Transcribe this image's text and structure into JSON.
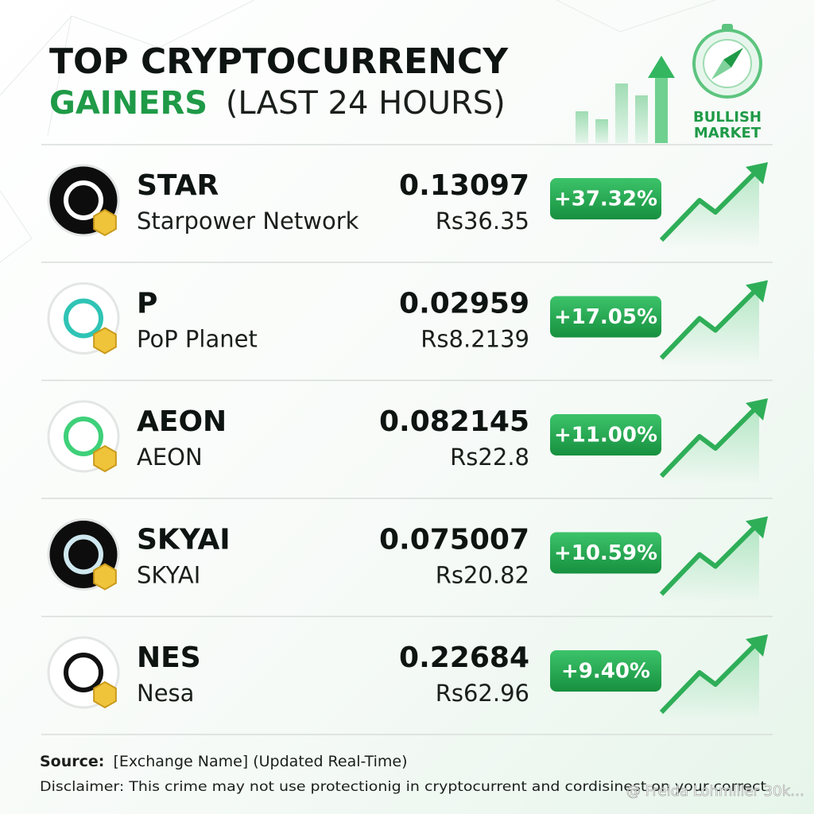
{
  "header": {
    "title_line1": "TOP CRYPTOCURRENCY",
    "title_highlight": "GAINERS",
    "title_rest": "(LAST 24 HOURS)",
    "badge_line1": "BULLISH",
    "badge_line2": "MARKET"
  },
  "table": {
    "rows": [
      {
        "symbol": "STAR",
        "name": "Starpower Network",
        "price": "0.13097",
        "price_inr": "Rs36.35",
        "change": "+37.32%"
      },
      {
        "symbol": "P",
        "name": "PoP Planet",
        "price": "0.02959",
        "price_inr": "Rs8.2139",
        "change": "+17.05%"
      },
      {
        "symbol": "AEON",
        "name": "AEON",
        "price": "0.082145",
        "price_inr": "Rs22.8",
        "change": "+11.00%"
      },
      {
        "symbol": "SKYAI",
        "name": "SKYAI",
        "price": "0.075007",
        "price_inr": "Rs20.82",
        "change": "+10.59%"
      },
      {
        "symbol": "NES",
        "name": "Nesa",
        "price": "0.22684",
        "price_inr": "Rs62.96",
        "change": "+9.40%"
      }
    ]
  },
  "footer": {
    "source_label": "Source:",
    "source_text": "[Exchange Name] (Updated Real-Time)",
    "disclaimer": "Disclaimer: This crime may not use protectionig in cryptocurrent and cordisinest on your correct.",
    "watermark": "@ Freida Lohmiller 30k…"
  }
}
